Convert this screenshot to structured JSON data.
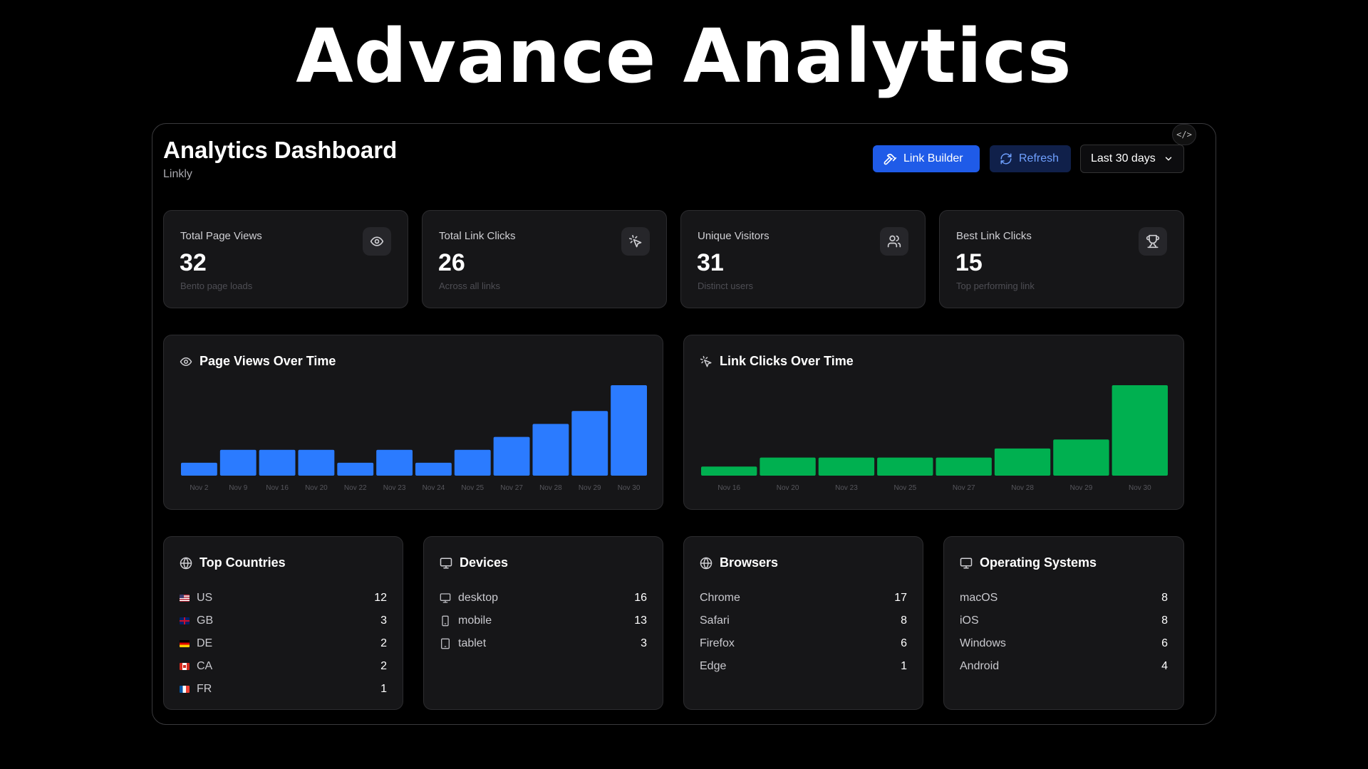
{
  "hero": {
    "title": "Advance Analytics"
  },
  "header": {
    "title": "Analytics Dashboard",
    "subtitle": "Linkly",
    "link_builder_label": "Link Builder",
    "refresh_label": "Refresh",
    "range_value": "Last 30 days",
    "code_toggle": "</>"
  },
  "colors": {
    "accent": "#1f5be8",
    "views_bar": "#2b7bff",
    "clicks_bar": "#00b050",
    "card_bg": "#161618"
  },
  "stats": [
    {
      "label": "Total Page Views",
      "value": "32",
      "hint": "Bento page loads",
      "icon": "eye-icon"
    },
    {
      "label": "Total Link Clicks",
      "value": "26",
      "hint": "Across all links",
      "icon": "pointer-click-icon"
    },
    {
      "label": "Unique Visitors",
      "value": "31",
      "hint": "Distinct users",
      "icon": "users-icon"
    },
    {
      "label": "Best Link Clicks",
      "value": "15",
      "hint": "Top performing link",
      "icon": "trophy-icon"
    }
  ],
  "chart_data": [
    {
      "type": "bar",
      "title": "Page Views Over Time",
      "categories": [
        "Nov 2",
        "Nov 9",
        "Nov 16",
        "Nov 20",
        "Nov 22",
        "Nov 23",
        "Nov 24",
        "Nov 25",
        "Nov 27",
        "Nov 28",
        "Nov 29",
        "Nov 30"
      ],
      "values": [
        1,
        2,
        2,
        2,
        1,
        2,
        1,
        2,
        3,
        4,
        5,
        7
      ],
      "color": "#2b7bff",
      "ylim": [
        0,
        7
      ],
      "grid": false
    },
    {
      "type": "bar",
      "title": "Link Clicks Over Time",
      "categories": [
        "Nov 16",
        "Nov 20",
        "Nov 23",
        "Nov 25",
        "Nov 27",
        "Nov 28",
        "Nov 29",
        "Nov 30"
      ],
      "values": [
        1,
        2,
        2,
        2,
        2,
        3,
        4,
        10
      ],
      "color": "#00b050",
      "ylim": [
        0,
        10
      ],
      "grid": false
    }
  ],
  "panels": {
    "countries": {
      "title": "Top Countries",
      "rows": [
        {
          "label": "US",
          "count": "12",
          "flag": "us"
        },
        {
          "label": "GB",
          "count": "3",
          "flag": "gb"
        },
        {
          "label": "DE",
          "count": "2",
          "flag": "de"
        },
        {
          "label": "CA",
          "count": "2",
          "flag": "ca"
        },
        {
          "label": "FR",
          "count": "1",
          "flag": "fr"
        }
      ]
    },
    "devices": {
      "title": "Devices",
      "rows": [
        {
          "label": "desktop",
          "count": "16",
          "icon": "monitor-icon"
        },
        {
          "label": "mobile",
          "count": "13",
          "icon": "phone-icon"
        },
        {
          "label": "tablet",
          "count": "3",
          "icon": "tablet-icon"
        }
      ]
    },
    "browsers": {
      "title": "Browsers",
      "rows": [
        {
          "label": "Chrome",
          "count": "17"
        },
        {
          "label": "Safari",
          "count": "8"
        },
        {
          "label": "Firefox",
          "count": "6"
        },
        {
          "label": "Edge",
          "count": "1"
        }
      ]
    },
    "os": {
      "title": "Operating Systems",
      "rows": [
        {
          "label": "macOS",
          "count": "8"
        },
        {
          "label": "iOS",
          "count": "8"
        },
        {
          "label": "Windows",
          "count": "6"
        },
        {
          "label": "Android",
          "count": "4"
        }
      ]
    }
  }
}
